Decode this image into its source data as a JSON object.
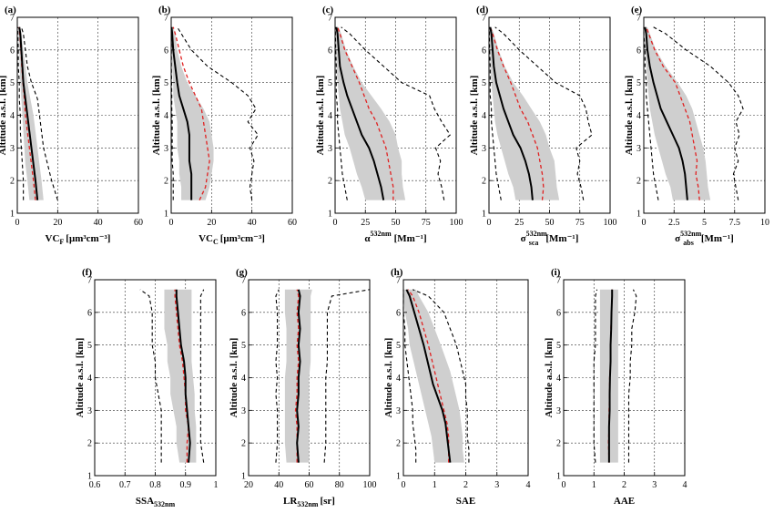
{
  "chart_data": [
    {
      "panel": "(a)",
      "type": "line",
      "xlabel_main": "VC",
      "xlabel_sub": "F",
      "xlabel_rest": "[μm³cm⁻³]",
      "ylabel": "Altitude a.s.l. [km]",
      "xlim": [
        0,
        60
      ],
      "ylim": [
        1,
        7
      ],
      "xticks": [
        0,
        20,
        40,
        60
      ],
      "yticks": [
        1,
        2,
        3,
        4,
        5,
        6,
        7
      ],
      "altitude": [
        1.4,
        2,
        2.5,
        3,
        3.5,
        4,
        4.5,
        5,
        5.5,
        6,
        6.5,
        6.7
      ],
      "mean": [
        10,
        9,
        8,
        7,
        6,
        5,
        4,
        3,
        2.5,
        2,
        1.5,
        1
      ],
      "median": [
        9,
        8,
        7,
        6,
        5,
        4,
        3.5,
        2.8,
        2.2,
        1.8,
        1.2,
        0.8
      ],
      "band_low": [
        6,
        5,
        4,
        3.5,
        3,
        2.5,
        2,
        1.5,
        1.2,
        1,
        0.6,
        0.4
      ],
      "band_high": [
        13,
        12,
        11,
        10,
        9,
        8,
        6.5,
        5,
        4,
        3,
        2,
        1.5
      ],
      "p_low": [
        3,
        3,
        2.5,
        2,
        1.5,
        1.5,
        1,
        1,
        0.5,
        0.5,
        0.3,
        0.2
      ],
      "p_high": [
        20,
        17,
        15,
        13,
        12,
        11,
        10,
        7,
        5,
        4,
        3,
        2
      ]
    },
    {
      "panel": "(b)",
      "type": "line",
      "xlabel_main": "VC",
      "xlabel_sub": "C",
      "xlabel_rest": "[μm³cm⁻³]",
      "ylabel": "Altitude a.s.l. [km]",
      "xlim": [
        0,
        60
      ],
      "ylim": [
        1,
        7
      ],
      "xticks": [
        0,
        20,
        40,
        60
      ],
      "yticks": [
        1,
        2,
        3,
        4,
        5,
        6,
        7
      ],
      "altitude": [
        1.4,
        1.8,
        2.2,
        2.6,
        3,
        3.4,
        3.8,
        4.2,
        4.6,
        5,
        5.5,
        6,
        6.5,
        6.7
      ],
      "mean": [
        10,
        10,
        10,
        9,
        9,
        9,
        8,
        6,
        4,
        3,
        2,
        1,
        0.5,
        0.2
      ],
      "median": [
        14,
        17,
        18,
        19,
        18,
        17,
        16,
        15,
        12,
        9,
        6,
        4,
        2,
        1
      ],
      "band_low": [
        5,
        5,
        4,
        4,
        3,
        3,
        3,
        2,
        1,
        1,
        0.5,
        0.3,
        0.2,
        0.1
      ],
      "band_high": [
        17,
        19,
        20,
        21,
        21,
        20,
        19,
        16,
        12,
        8,
        5,
        3,
        2,
        1
      ],
      "p_low": [
        1,
        1,
        1,
        0.5,
        0.5,
        0.5,
        0.5,
        0.3,
        0.3,
        0.2,
        0.1,
        0.1,
        0.1,
        0
      ],
      "p_high": [
        40,
        39,
        40,
        41,
        39,
        43,
        38,
        42,
        38,
        30,
        18,
        10,
        5,
        3
      ]
    },
    {
      "panel": "(c)",
      "type": "line",
      "xlabel_main": "α",
      "xlabel_sup": "532nm",
      "xlabel_rest": "[Mm⁻¹]",
      "ylabel": "Altitude a.s.l. [km]",
      "xlim": [
        0,
        100
      ],
      "ylim": [
        1,
        7
      ],
      "xticks": [
        0,
        25,
        50,
        75,
        100
      ],
      "yticks": [
        1,
        2,
        3,
        4,
        5,
        6,
        7
      ],
      "altitude": [
        1.4,
        1.8,
        2.2,
        2.6,
        3,
        3.4,
        3.8,
        4.2,
        4.6,
        5,
        5.5,
        6,
        6.5,
        6.7
      ],
      "mean": [
        40,
        38,
        35,
        32,
        28,
        22,
        18,
        14,
        10,
        7,
        4,
        3,
        2,
        1
      ],
      "median": [
        48,
        48,
        46,
        44,
        42,
        38,
        34,
        28,
        24,
        20,
        14,
        8,
        4,
        2
      ],
      "band_low": [
        25,
        22,
        18,
        15,
        12,
        8,
        6,
        4,
        3,
        2,
        1,
        1,
        0.5,
        0.3
      ],
      "band_high": [
        58,
        56,
        55,
        55,
        52,
        50,
        45,
        38,
        30,
        22,
        15,
        9,
        5,
        3
      ],
      "p_low": [
        10,
        8,
        6,
        5,
        4,
        3,
        2,
        2,
        1,
        1,
        1,
        0.5,
        0.3,
        0.2
      ],
      "p_high": [
        90,
        88,
        85,
        87,
        83,
        95,
        88,
        82,
        78,
        55,
        40,
        25,
        12,
        5
      ]
    },
    {
      "panel": "(d)",
      "type": "line",
      "xlabel_main": "σ",
      "xlabel_sup": "532nm",
      "xlabel_sub": "sca",
      "xlabel_rest": "[Mm⁻¹]",
      "ylabel": "Altitude a.s.l. [km]",
      "xlim": [
        0,
        100
      ],
      "ylim": [
        1,
        7
      ],
      "xticks": [
        0,
        25,
        50,
        75,
        100
      ],
      "yticks": [
        1,
        2,
        3,
        4,
        5,
        6,
        7
      ],
      "altitude": [
        1.4,
        1.8,
        2.2,
        2.6,
        3,
        3.4,
        3.8,
        4.2,
        4.6,
        5,
        5.5,
        6,
        6.5,
        6.7
      ],
      "mean": [
        36,
        35,
        33,
        30,
        26,
        20,
        16,
        12,
        9,
        6,
        4,
        3,
        2,
        1
      ],
      "median": [
        44,
        45,
        44,
        42,
        40,
        36,
        32,
        26,
        22,
        18,
        12,
        7,
        3,
        1
      ],
      "band_low": [
        22,
        20,
        16,
        13,
        10,
        7,
        5,
        4,
        3,
        2,
        1,
        1,
        0.5,
        0.3
      ],
      "band_high": [
        58,
        56,
        55,
        54,
        50,
        47,
        42,
        35,
        28,
        20,
        13,
        8,
        4,
        2
      ],
      "p_low": [
        10,
        8,
        6,
        5,
        4,
        3,
        2,
        2,
        1,
        1,
        1,
        0.5,
        0.3,
        0.2
      ],
      "p_high": [
        78,
        76,
        73,
        75,
        72,
        85,
        82,
        80,
        75,
        55,
        40,
        25,
        12,
        5
      ]
    },
    {
      "panel": "(e)",
      "type": "line",
      "xlabel_main": "σ",
      "xlabel_sup": "532nm",
      "xlabel_sub": "abs",
      "xlabel_rest": "[Mm⁻¹]",
      "ylabel": "Altitude a.s.l. [km]",
      "xlim": [
        0,
        10
      ],
      "ylim": [
        1,
        7
      ],
      "xticks": [
        0,
        2.5,
        5,
        7.5,
        10
      ],
      "xtick_labels": [
        "0",
        "2.5",
        "5",
        "7.5",
        "10"
      ],
      "yticks": [
        1,
        2,
        3,
        4,
        5,
        6,
        7
      ],
      "altitude": [
        1.4,
        1.8,
        2.2,
        2.6,
        3,
        3.4,
        3.8,
        4.2,
        4.6,
        5,
        5.5,
        6,
        6.5,
        6.7
      ],
      "mean": [
        3.6,
        3.5,
        3.4,
        3.2,
        2.9,
        2.4,
        1.9,
        1.4,
        1.1,
        0.8,
        0.5,
        0.3,
        0.2,
        0.1
      ],
      "median": [
        4.6,
        4.5,
        4.3,
        4.4,
        4.2,
        4.0,
        3.8,
        3.4,
        3.0,
        2.6,
        1.6,
        0.9,
        0.4,
        0.2
      ],
      "band_low": [
        2.4,
        2.2,
        1.8,
        1.5,
        1.2,
        0.9,
        0.7,
        0.5,
        0.4,
        0.3,
        0.2,
        0.1,
        0.1,
        0
      ],
      "band_high": [
        5.5,
        5.3,
        5.2,
        5.1,
        4.9,
        4.6,
        4.3,
        4.0,
        3.5,
        2.8,
        1.8,
        1.0,
        0.5,
        0.3
      ],
      "p_low": [
        1.2,
        1.0,
        0.8,
        0.7,
        0.6,
        0.5,
        0.4,
        0.3,
        0.2,
        0.2,
        0.1,
        0.1,
        0,
        0
      ],
      "p_high": [
        7.8,
        7.6,
        7.4,
        7.8,
        7.5,
        7.9,
        7.6,
        8.2,
        7.8,
        7.0,
        5.5,
        3.5,
        1.8,
        0.8
      ]
    },
    {
      "panel": "(f)",
      "type": "line",
      "xlabel_main": "SSA",
      "xlabel_sub": "532nm",
      "xlabel_rest": "",
      "ylabel": "Altitude a.s.l. [km]",
      "xlim": [
        0.6,
        1.0
      ],
      "ylim": [
        1,
        7
      ],
      "xticks": [
        0.6,
        0.7,
        0.8,
        0.9,
        1.0
      ],
      "xtick_labels": [
        "0.6",
        "0.7",
        "0.8",
        "0.9",
        "1"
      ],
      "yticks": [
        1,
        2,
        3,
        4,
        5,
        6,
        7
      ],
      "altitude": [
        1.4,
        2,
        2.5,
        3,
        3.5,
        4,
        4.5,
        5,
        5.5,
        6,
        6.5,
        6.7
      ],
      "mean": [
        0.91,
        0.915,
        0.91,
        0.905,
        0.9,
        0.9,
        0.895,
        0.885,
        0.88,
        0.875,
        0.87,
        0.87
      ],
      "median": [
        0.905,
        0.905,
        0.91,
        0.9,
        0.9,
        0.895,
        0.89,
        0.88,
        0.875,
        0.87,
        0.865,
        0.865
      ],
      "band_low": [
        0.88,
        0.87,
        0.87,
        0.86,
        0.85,
        0.85,
        0.84,
        0.84,
        0.83,
        0.83,
        0.83,
        0.83
      ],
      "band_high": [
        0.935,
        0.935,
        0.935,
        0.93,
        0.93,
        0.925,
        0.92,
        0.92,
        0.92,
        0.92,
        0.92,
        0.92
      ],
      "p_low": [
        0.82,
        0.82,
        0.82,
        0.82,
        0.81,
        0.8,
        0.8,
        0.79,
        0.79,
        0.79,
        0.78,
        0.75
      ],
      "p_high": [
        0.96,
        0.95,
        0.95,
        0.95,
        0.95,
        0.95,
        0.95,
        0.95,
        0.95,
        0.95,
        0.95,
        0.96
      ]
    },
    {
      "panel": "(g)",
      "type": "line",
      "xlabel_main": "LR",
      "xlabel_sub": "532nm",
      "xlabel_rest": "[sr]",
      "ylabel": "Altitude a.s.l. [km]",
      "xlim": [
        20,
        100
      ],
      "ylim": [
        1,
        7
      ],
      "xticks": [
        20,
        40,
        60,
        80,
        100
      ],
      "yticks": [
        1,
        2,
        3,
        4,
        5,
        6,
        7
      ],
      "altitude": [
        1.4,
        2,
        2.5,
        3,
        3.5,
        4,
        4.5,
        5,
        5.5,
        6,
        6.5,
        6.7
      ],
      "mean": [
        53,
        52,
        53,
        52,
        53,
        53,
        54,
        53,
        54,
        53,
        54,
        53
      ],
      "median": [
        52,
        52,
        52,
        51,
        52,
        52,
        53,
        52,
        53,
        52,
        53,
        52
      ],
      "band_low": [
        45,
        44,
        44,
        44,
        44,
        44,
        45,
        45,
        45,
        44,
        44,
        44
      ],
      "band_high": [
        60,
        60,
        60,
        60,
        60,
        60,
        61,
        61,
        61,
        61,
        61,
        62
      ],
      "p_low": [
        38,
        39,
        39,
        39,
        38,
        39,
        38,
        39,
        39,
        39,
        38,
        40
      ],
      "p_high": [
        70,
        71,
        71,
        71,
        71,
        71,
        72,
        72,
        72,
        72,
        75,
        100
      ]
    },
    {
      "panel": "(h)",
      "type": "line",
      "xlabel_main": "SAE",
      "xlabel_sub": "",
      "xlabel_rest": "",
      "ylabel": "Altitude a.s.l. [km]",
      "xlim": [
        0,
        4
      ],
      "ylim": [
        1,
        7
      ],
      "xticks": [
        0,
        1,
        2,
        3,
        4
      ],
      "yticks": [
        1,
        2,
        3,
        4,
        5,
        6,
        7
      ],
      "altitude": [
        1.4,
        1.8,
        2.2,
        2.6,
        3,
        3.4,
        3.8,
        4.2,
        4.6,
        5,
        5.5,
        6,
        6.5,
        6.7
      ],
      "mean": [
        1.5,
        1.45,
        1.4,
        1.35,
        1.25,
        1.1,
        0.95,
        0.85,
        0.75,
        0.65,
        0.5,
        0.35,
        0.2,
        0.1
      ],
      "median": [
        1.45,
        1.45,
        1.45,
        1.4,
        1.3,
        1.2,
        1.1,
        1.0,
        0.9,
        0.8,
        0.65,
        0.5,
        0.3,
        0.15
      ],
      "band_low": [
        1.0,
        0.95,
        0.9,
        0.8,
        0.7,
        0.6,
        0.5,
        0.4,
        0.3,
        0.2,
        0.15,
        0.05,
        0,
        0
      ],
      "band_high": [
        1.95,
        1.9,
        1.9,
        1.85,
        1.8,
        1.7,
        1.6,
        1.5,
        1.35,
        1.2,
        1.0,
        0.8,
        0.5,
        0.4
      ],
      "p_low": [
        0.4,
        0.4,
        0.35,
        0.3,
        0.3,
        0.25,
        0.2,
        0.15,
        0.1,
        0.05,
        0.05,
        0,
        0,
        0
      ],
      "p_high": [
        2.1,
        2.1,
        2.05,
        2.05,
        2.05,
        2.0,
        2.0,
        1.9,
        1.8,
        1.7,
        1.5,
        1.3,
        0.8,
        0.3
      ]
    },
    {
      "panel": "(i)",
      "type": "line",
      "xlabel_main": "AAE",
      "xlabel_sub": "",
      "xlabel_rest": "",
      "ylabel": "Altitude a.s.l. [km]",
      "xlim": [
        0,
        4
      ],
      "ylim": [
        1,
        7
      ],
      "xticks": [
        0,
        1,
        2,
        3,
        4
      ],
      "yticks": [
        1,
        2,
        3,
        4,
        5,
        6,
        7
      ],
      "altitude": [
        1.4,
        2,
        2.5,
        3,
        3.5,
        4,
        4.5,
        5,
        5.5,
        6,
        6.5,
        6.7
      ],
      "mean": [
        1.5,
        1.5,
        1.5,
        1.52,
        1.52,
        1.53,
        1.55,
        1.55,
        1.57,
        1.58,
        1.6,
        1.6
      ],
      "median": [
        1.5,
        1.48,
        1.5,
        1.5,
        1.52,
        1.52,
        1.55,
        1.55,
        1.56,
        1.58,
        1.6,
        1.6
      ],
      "band_low": [
        1.2,
        1.2,
        1.2,
        1.2,
        1.2,
        1.2,
        1.2,
        1.2,
        1.2,
        1.2,
        1.2,
        1.2
      ],
      "band_high": [
        1.8,
        1.8,
        1.8,
        1.8,
        1.8,
        1.8,
        1.8,
        1.8,
        1.8,
        1.8,
        1.8,
        1.8
      ],
      "p_low": [
        1.05,
        1.0,
        1.0,
        1.0,
        1.0,
        1.0,
        1.0,
        1.05,
        1.05,
        1.05,
        1.05,
        1.1
      ],
      "p_high": [
        2.15,
        2.15,
        2.15,
        2.15,
        2.15,
        2.2,
        2.2,
        2.25,
        2.25,
        2.35,
        2.4,
        2.3
      ]
    }
  ]
}
